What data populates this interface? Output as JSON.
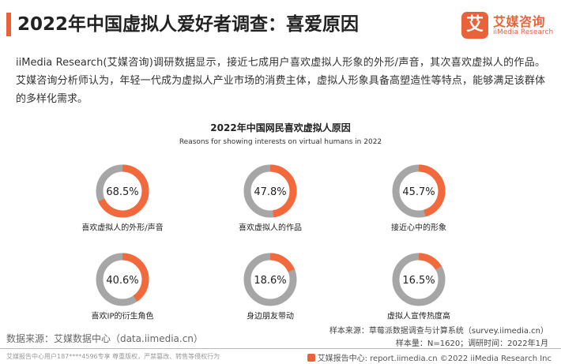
{
  "colors": {
    "accent": "#F26A3C",
    "track": "#A6A6A6",
    "title_bar": "#E8623A"
  },
  "header": {
    "title": "2022年中国虚拟人爱好者调查：喜爱原因"
  },
  "logo": {
    "icon_char": "艾",
    "name_cn": "艾媒咨询",
    "name_en": "iiMedia Research"
  },
  "intro": {
    "text": "iiMedia Research(艾媒咨询)调研数据显示，接近七成用户喜欢虚拟人形象的外形/声音，其次喜欢虚拟人的作品。艾媒咨询分析师认为，年轻一代成为虚拟人产业市场的消费主体，虚拟人形象具备高塑造性等特点，能够满足该群体的多样化需求。"
  },
  "chart_data": {
    "type": "pie",
    "style": "donut-grid",
    "title": "2022年中国网民喜欢虚拟人原因",
    "subtitle": "Reasons for showing interests on virtual humans in 2022",
    "unit": "%",
    "categories": [
      "喜欢虚拟人的外形/声音",
      "喜欢虚拟人的作品",
      "接近心中的形象",
      "喜欢IP的衍生角色",
      "身边朋友带动",
      "虚拟人宣传热度高"
    ],
    "values": [
      68.5,
      47.8,
      45.7,
      40.6,
      18.6,
      16.5
    ],
    "value_labels": [
      "68.5%",
      "47.8%",
      "45.7%",
      "40.6%",
      "18.6%",
      "16.5%"
    ]
  },
  "footer": {
    "source": "数据来源：艾媒数据中心（data.iimedia.cn）",
    "sample_source": "样本来源：草莓派数据调查与计算系统（survey.iimedia.cn）",
    "sample_info": "样本量：N=1620；调研时间：2022年1月",
    "copyright_notice": "艾媒报告中心用户187****4596专享 尊重版权，严禁篡改、转售等侵权行为",
    "site": "艾媒报告中心: report.iimedia.cn  ©2022 iiMedia Research Inc"
  }
}
